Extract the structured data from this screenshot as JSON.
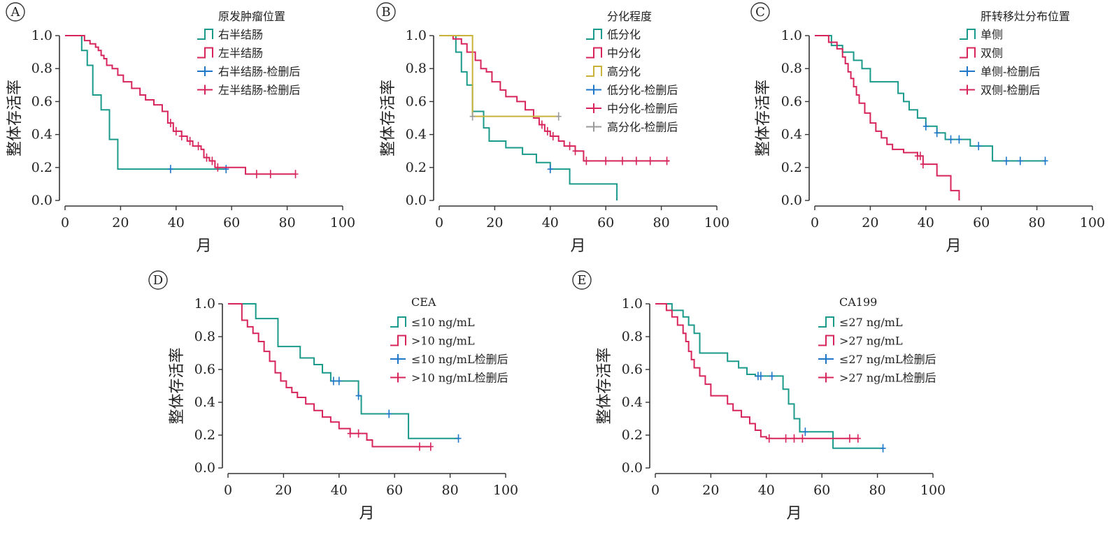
{
  "figure": {
    "x_axis_label": "月",
    "y_axis_label": "整体存活率",
    "x_ticks": [
      "0",
      "20",
      "40",
      "60",
      "80",
      "100"
    ],
    "y_ticks": [
      "0.0",
      "0.2",
      "0.4",
      "0.6",
      "0.8",
      "1.0"
    ]
  },
  "colors": {
    "teal": "#1a9a8a",
    "crimson": "#d7245a",
    "blue": "#1f77c8",
    "olive": "#c9b33a",
    "gray": "#9a9a9a",
    "axis": "#333333"
  },
  "chart_data": [
    {
      "type": "line",
      "panel": "A",
      "legend_title": "原发肿瘤位置",
      "xlabel": "月",
      "ylabel": "整体存活率",
      "xlim": [
        0,
        100
      ],
      "ylim": [
        0,
        1
      ],
      "step": true,
      "legend": [
        {
          "label": "右半结肠",
          "kind": "line",
          "color": "#1a9a8a"
        },
        {
          "label": "左半结肠",
          "kind": "line",
          "color": "#d7245a"
        },
        {
          "label": "右半结肠-检删后",
          "kind": "censor",
          "color": "#1f77c8"
        },
        {
          "label": "左半结肠-检删后",
          "kind": "censor",
          "color": "#d7245a"
        }
      ],
      "series": [
        {
          "name": "右半结肠",
          "color": "#1a9a8a",
          "x": [
            0,
            6,
            8,
            10,
            13,
            16,
            19,
            38,
            58
          ],
          "y": [
            1.0,
            0.91,
            0.82,
            0.64,
            0.55,
            0.37,
            0.19,
            0.19,
            0.19
          ],
          "censor_color": "#1f77c8",
          "censored": [
            38,
            58
          ]
        },
        {
          "name": "左半结肠",
          "color": "#d7245a",
          "x": [
            0,
            7,
            9,
            11,
            12,
            13,
            14,
            15,
            17,
            19,
            21,
            24,
            27,
            29,
            32,
            35,
            37,
            39,
            42,
            44,
            46,
            49,
            50,
            52,
            54,
            59,
            65,
            83
          ],
          "y": [
            1.0,
            0.97,
            0.95,
            0.93,
            0.91,
            0.88,
            0.86,
            0.82,
            0.8,
            0.76,
            0.72,
            0.68,
            0.64,
            0.61,
            0.58,
            0.54,
            0.47,
            0.42,
            0.39,
            0.36,
            0.33,
            0.31,
            0.26,
            0.24,
            0.2,
            0.2,
            0.16,
            0.16
          ],
          "censor_color": "#d7245a",
          "censored": [
            38,
            40,
            42,
            45,
            48,
            51,
            53,
            55,
            69,
            74,
            83
          ]
        }
      ]
    },
    {
      "type": "line",
      "panel": "B",
      "legend_title": "分化程度",
      "xlabel": "月",
      "ylabel": "整体存活率",
      "xlim": [
        0,
        100
      ],
      "ylim": [
        0,
        1
      ],
      "step": true,
      "legend": [
        {
          "label": "低分化",
          "kind": "line",
          "color": "#1a9a8a"
        },
        {
          "label": "中分化",
          "kind": "line",
          "color": "#d7245a"
        },
        {
          "label": "高分化",
          "kind": "line",
          "color": "#c9b33a"
        },
        {
          "label": "低分化-检删后",
          "kind": "censor",
          "color": "#1f77c8"
        },
        {
          "label": "中分化-检删后",
          "kind": "censor",
          "color": "#d7245a"
        },
        {
          "label": "高分化-检删后",
          "kind": "censor",
          "color": "#9a9a9a"
        }
      ],
      "series": [
        {
          "name": "低分化",
          "color": "#1a9a8a",
          "x": [
            0,
            6,
            8,
            10,
            12,
            16,
            18,
            24,
            30,
            35,
            40,
            47,
            64
          ],
          "y": [
            1.0,
            0.9,
            0.78,
            0.7,
            0.54,
            0.44,
            0.36,
            0.32,
            0.28,
            0.23,
            0.19,
            0.1,
            0.0
          ],
          "censor_color": "#1f77c8",
          "censored": [
            40
          ]
        },
        {
          "name": "中分化",
          "color": "#d7245a",
          "x": [
            0,
            5,
            8,
            10,
            13,
            15,
            17,
            19,
            22,
            24,
            28,
            31,
            34,
            36,
            38,
            40,
            43,
            45,
            49,
            52,
            83
          ],
          "y": [
            1.0,
            0.98,
            0.95,
            0.9,
            0.85,
            0.8,
            0.78,
            0.72,
            0.67,
            0.63,
            0.6,
            0.55,
            0.5,
            0.46,
            0.42,
            0.39,
            0.36,
            0.33,
            0.3,
            0.24,
            0.24
          ],
          "censor_color": "#d7245a",
          "censored": [
            37,
            39,
            41,
            47,
            49,
            53,
            60,
            66,
            71,
            76,
            82
          ]
        },
        {
          "name": "高分化",
          "color": "#c9b33a",
          "x": [
            0,
            12,
            43
          ],
          "y": [
            1.0,
            0.51,
            0.51
          ],
          "censor_color": "#9a9a9a",
          "censored": [
            12,
            43
          ]
        }
      ]
    },
    {
      "type": "line",
      "panel": "C",
      "legend_title": "肝转移灶分布位置",
      "xlabel": "月",
      "ylabel": "整体存活率",
      "xlim": [
        0,
        100
      ],
      "ylim": [
        0,
        1
      ],
      "step": true,
      "legend": [
        {
          "label": "单侧",
          "kind": "line",
          "color": "#1a9a8a"
        },
        {
          "label": "双侧",
          "kind": "line",
          "color": "#d7245a"
        },
        {
          "label": "单侧-检删后",
          "kind": "censor",
          "color": "#1f77c8"
        },
        {
          "label": "双侧-检删后",
          "kind": "censor",
          "color": "#d7245a"
        }
      ],
      "series": [
        {
          "name": "单侧",
          "color": "#1a9a8a",
          "x": [
            0,
            6,
            10,
            14,
            17,
            20,
            30,
            32,
            34,
            37,
            40,
            44,
            47,
            56,
            64,
            83
          ],
          "y": [
            1.0,
            0.94,
            0.9,
            0.85,
            0.8,
            0.72,
            0.65,
            0.6,
            0.55,
            0.5,
            0.45,
            0.41,
            0.37,
            0.33,
            0.24,
            0.24
          ],
          "censor_color": "#1f77c8",
          "censored": [
            40,
            44,
            49,
            52,
            59,
            69,
            74,
            83
          ]
        },
        {
          "name": "双侧",
          "color": "#d7245a",
          "x": [
            0,
            5,
            8,
            10,
            11,
            12,
            13,
            14,
            15,
            16,
            18,
            20,
            22,
            24,
            26,
            28,
            32,
            37,
            39,
            44,
            49,
            52
          ],
          "y": [
            1.0,
            0.96,
            0.92,
            0.87,
            0.83,
            0.78,
            0.74,
            0.69,
            0.64,
            0.59,
            0.53,
            0.47,
            0.42,
            0.38,
            0.34,
            0.31,
            0.29,
            0.27,
            0.22,
            0.15,
            0.06,
            0.0
          ],
          "censor_color": "#d7245a",
          "censored": [
            37,
            38,
            39
          ]
        }
      ]
    },
    {
      "type": "line",
      "panel": "D",
      "legend_title": "CEA",
      "xlabel": "月",
      "ylabel": "整体存活率",
      "xlim": [
        0,
        100
      ],
      "ylim": [
        0,
        1
      ],
      "step": true,
      "legend": [
        {
          "label": "≤10 ng/mL",
          "kind": "line",
          "color": "#1a9a8a"
        },
        {
          "label": ">10 ng/mL",
          "kind": "line",
          "color": "#d7245a"
        },
        {
          "label": "≤10 ng/mL检删后",
          "kind": "censor",
          "color": "#1f77c8"
        },
        {
          "label": ">10 ng/mL检删后",
          "kind": "censor",
          "color": "#d7245a"
        }
      ],
      "series": [
        {
          "name": "≤10 ng/mL",
          "color": "#1a9a8a",
          "x": [
            0,
            10,
            18,
            26,
            31,
            34,
            37,
            47,
            48,
            65,
            83
          ],
          "y": [
            1.0,
            0.91,
            0.74,
            0.67,
            0.63,
            0.58,
            0.53,
            0.44,
            0.33,
            0.18,
            0.18
          ],
          "censor_color": "#1f77c8",
          "censored": [
            38,
            40,
            47,
            58,
            83
          ]
        },
        {
          "name": ">10 ng/mL",
          "color": "#d7245a",
          "x": [
            0,
            5,
            7,
            9,
            11,
            13,
            15,
            17,
            19,
            21,
            23,
            25,
            28,
            31,
            34,
            37,
            40,
            44,
            50,
            52,
            73
          ],
          "y": [
            1.0,
            0.9,
            0.86,
            0.82,
            0.77,
            0.71,
            0.65,
            0.58,
            0.53,
            0.49,
            0.46,
            0.43,
            0.39,
            0.35,
            0.31,
            0.28,
            0.24,
            0.21,
            0.17,
            0.13,
            0.13
          ],
          "censor_color": "#d7245a",
          "censored": [
            44,
            47,
            69,
            73
          ]
        }
      ]
    },
    {
      "type": "line",
      "panel": "E",
      "legend_title": "CA199",
      "xlabel": "月",
      "ylabel": "整体存活率",
      "xlim": [
        0,
        100
      ],
      "ylim": [
        0,
        1
      ],
      "step": true,
      "legend": [
        {
          "label": "≤27 ng/mL",
          "kind": "line",
          "color": "#1a9a8a"
        },
        {
          "label": ">27 ng/mL",
          "kind": "line",
          "color": "#d7245a"
        },
        {
          "label": "≤27 ng/mL检删后",
          "kind": "censor",
          "color": "#1f77c8"
        },
        {
          "label": ">27 ng/mL检删后",
          "kind": "censor",
          "color": "#d7245a"
        }
      ],
      "series": [
        {
          "name": "≤27 ng/mL",
          "color": "#1a9a8a",
          "x": [
            0,
            6,
            10,
            12,
            14,
            16,
            26,
            30,
            33,
            36,
            46,
            48,
            50,
            52,
            64,
            82
          ],
          "y": [
            1.0,
            0.96,
            0.92,
            0.87,
            0.82,
            0.7,
            0.65,
            0.61,
            0.57,
            0.56,
            0.48,
            0.39,
            0.3,
            0.22,
            0.12,
            0.12
          ],
          "censor_color": "#1f77c8",
          "censored": [
            37,
            38,
            42,
            54,
            82
          ]
        },
        {
          "name": ">27 ng/mL",
          "color": "#d7245a",
          "x": [
            0,
            4,
            6,
            8,
            10,
            11,
            12,
            13,
            14,
            16,
            18,
            20,
            26,
            28,
            31,
            34,
            36,
            38,
            40,
            73
          ],
          "y": [
            1.0,
            0.96,
            0.92,
            0.87,
            0.82,
            0.77,
            0.71,
            0.66,
            0.61,
            0.56,
            0.51,
            0.44,
            0.39,
            0.35,
            0.31,
            0.27,
            0.23,
            0.19,
            0.18,
            0.18
          ],
          "censor_color": "#d7245a",
          "censored": [
            41,
            47,
            50,
            53,
            70,
            73
          ]
        }
      ]
    }
  ]
}
